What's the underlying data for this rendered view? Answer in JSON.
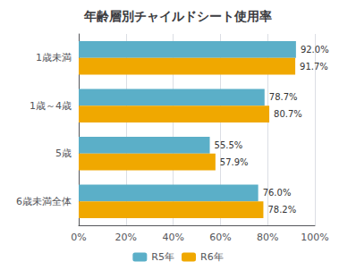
{
  "chart_data": {
    "type": "bar",
    "orientation": "horizontal",
    "title": "年齢層別チャイルドシート使用率",
    "categories": [
      "1歳未満",
      "1歳～4歳",
      "5歳",
      "6歳未満全体"
    ],
    "series": [
      {
        "name": "R5年",
        "color": "#5bafc8",
        "values": [
          92.0,
          78.7,
          55.5,
          76.0
        ],
        "value_labels": [
          "92.0%",
          "78.7%",
          "55.5%",
          "76.0%"
        ]
      },
      {
        "name": "R6年",
        "color": "#f0a800",
        "values": [
          91.7,
          80.7,
          57.9,
          78.2
        ],
        "value_labels": [
          "91.7%",
          "80.7%",
          "57.9%",
          "78.2%"
        ]
      }
    ],
    "xlim": [
      0,
      100
    ],
    "xticks": [
      {
        "value": 0,
        "label": "0%"
      },
      {
        "value": 20,
        "label": "20%"
      },
      {
        "value": 40,
        "label": "40%"
      },
      {
        "value": 60,
        "label": "60%"
      },
      {
        "value": 80,
        "label": "80%"
      },
      {
        "value": 100,
        "label": "100%"
      }
    ],
    "grid": true,
    "legend": "bottom",
    "data_labels": true
  }
}
